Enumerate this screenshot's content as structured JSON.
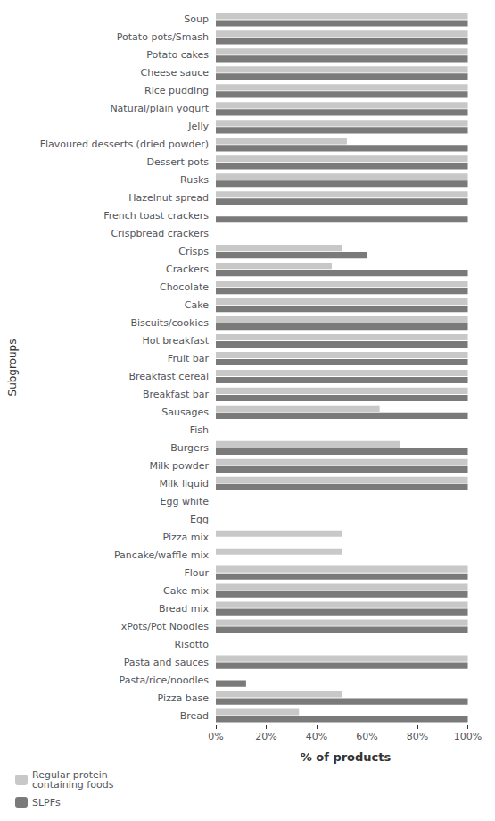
{
  "chart_data": {
    "type": "bar",
    "orientation": "horizontal",
    "xlabel": "% of products",
    "ylabel": "Subgroups",
    "categories": [
      "Soup",
      "Potato pots/Smash",
      "Potato cakes",
      "Cheese sauce",
      "Rice pudding",
      "Natural/plain yogurt",
      "Jelly",
      "Flavoured desserts (dried powder)",
      "Dessert pots",
      "Rusks",
      "Hazelnut spread",
      "French toast crackers",
      "Crispbread crackers",
      "Crisps",
      "Crackers",
      "Chocolate",
      "Cake",
      "Biscuits/cookies",
      "Hot breakfast",
      "Fruit bar",
      "Breakfast cereal",
      "Breakfast bar",
      "Sausages",
      "Fish",
      "Burgers",
      "Milk powder",
      "Milk liquid",
      "Egg white",
      "Egg",
      "Pizza mix",
      "Pancake/waffle mix",
      "Flour",
      "Cake mix",
      "Bread mix",
      "xPots/Pot Noodles",
      "Risotto",
      "Pasta and sauces",
      "Pasta/rice/noodles",
      "Pizza base",
      "Bread"
    ],
    "series": [
      {
        "name": "Regular protein\ncontaining foods",
        "color": "#c8c8c8",
        "values": [
          100,
          100,
          100,
          100,
          100,
          100,
          100,
          52,
          100,
          100,
          100,
          0,
          0,
          50,
          46,
          100,
          100,
          100,
          100,
          100,
          100,
          100,
          65,
          0,
          73,
          100,
          100,
          0,
          0,
          50,
          50,
          100,
          100,
          100,
          100,
          0,
          100,
          0,
          50,
          33
        ]
      },
      {
        "name": "SLPFs",
        "color": "#7a7a7a",
        "values": [
          100,
          100,
          100,
          100,
          100,
          100,
          100,
          100,
          100,
          100,
          100,
          100,
          0,
          60,
          100,
          100,
          100,
          100,
          100,
          100,
          100,
          100,
          100,
          0,
          100,
          100,
          100,
          0,
          0,
          0,
          0,
          100,
          100,
          100,
          100,
          0,
          100,
          12,
          100,
          100
        ]
      }
    ],
    "xlim": [
      0,
      103
    ],
    "xticks": [
      {
        "value": 0,
        "label": "0%"
      },
      {
        "value": 20,
        "label": "20%"
      },
      {
        "value": 40,
        "label": "40%"
      },
      {
        "value": 60,
        "label": "60%"
      },
      {
        "value": 80,
        "label": "80%"
      },
      {
        "value": 100,
        "label": "100%"
      }
    ],
    "grid": false,
    "legend": "lower left"
  }
}
